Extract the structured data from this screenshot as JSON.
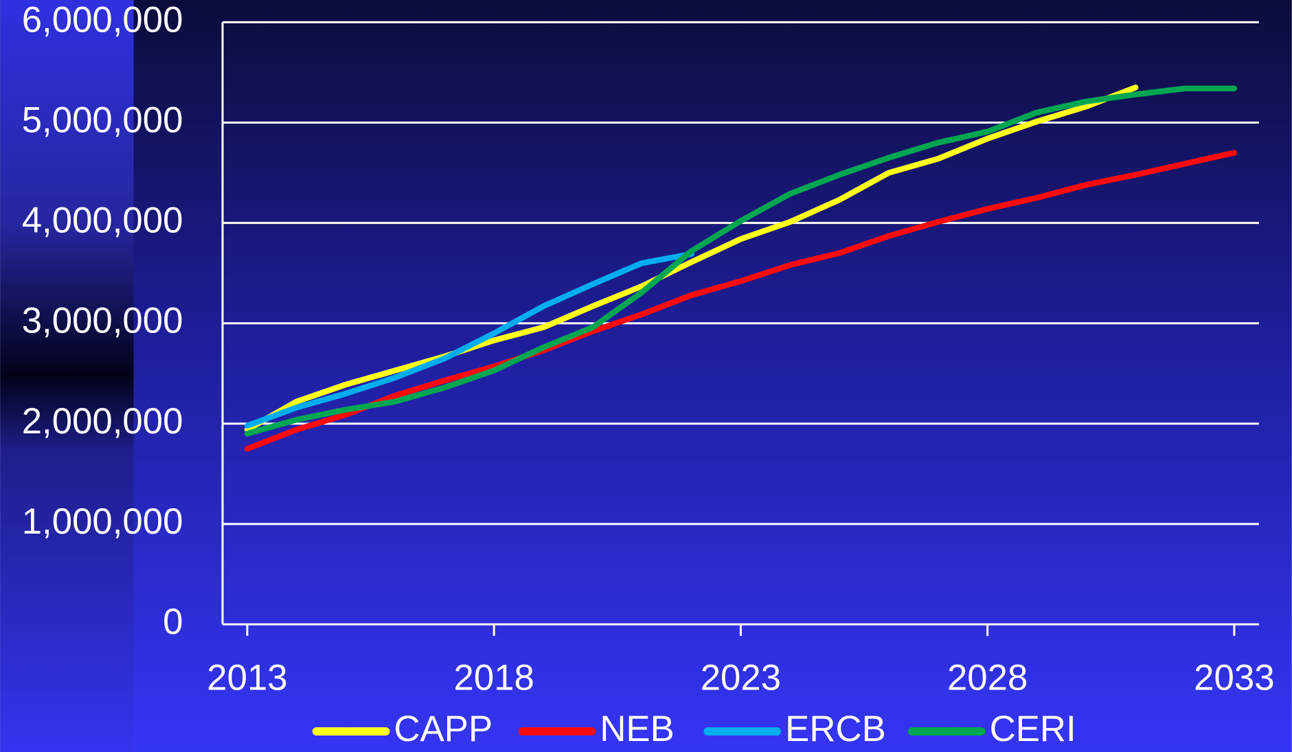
{
  "chart_data": {
    "type": "line",
    "x": [
      2013,
      2014,
      2015,
      2016,
      2017,
      2018,
      2019,
      2020,
      2021,
      2022,
      2023,
      2024,
      2025,
      2026,
      2027,
      2028,
      2029,
      2030,
      2031,
      2032,
      2033
    ],
    "series": [
      {
        "name": "CAPP",
        "color": "#ffff1a",
        "values": [
          1940000,
          2220000,
          2390000,
          2530000,
          2670000,
          2830000,
          2960000,
          3170000,
          3370000,
          3610000,
          3840000,
          4010000,
          4230000,
          4500000,
          4640000,
          4840000,
          5010000,
          5160000,
          5350000,
          null,
          null
        ]
      },
      {
        "name": "NEB",
        "color": "#ff0a0a",
        "values": [
          1750000,
          1940000,
          2090000,
          2280000,
          2430000,
          2570000,
          2730000,
          2920000,
          3090000,
          3280000,
          3420000,
          3580000,
          3700000,
          3870000,
          4010000,
          4140000,
          4250000,
          4380000,
          4480000,
          4590000,
          4700000
        ]
      },
      {
        "name": "ERCB",
        "color": "#00aeef",
        "values": [
          1980000,
          2160000,
          2300000,
          2460000,
          2650000,
          2900000,
          3170000,
          3390000,
          3600000,
          3690000,
          null,
          null,
          null,
          null,
          null,
          null,
          null,
          null,
          null,
          null,
          null
        ]
      },
      {
        "name": "CERI",
        "color": "#00a651",
        "values": [
          1900000,
          2040000,
          2140000,
          2220000,
          2360000,
          2530000,
          2760000,
          2960000,
          3310000,
          3720000,
          4020000,
          4290000,
          4480000,
          4650000,
          4800000,
          4910000,
          5100000,
          5210000,
          5280000,
          5340000,
          5340000
        ]
      }
    ],
    "xlim": [
      2012.5,
      2033.5
    ],
    "xticks": [
      2013,
      2018,
      2023,
      2028,
      2033
    ],
    "ylim": [
      0,
      6000000
    ],
    "yticks": [
      0,
      {
        "value": 1000000,
        "label": "1,000,000"
      },
      {
        "value": 2000000,
        "label": "2,000,000"
      },
      {
        "value": 3000000,
        "label": "3,000,000"
      },
      {
        "value": 4000000,
        "label": "4,000,000"
      },
      {
        "value": 5000000,
        "label": "5,000,000"
      },
      {
        "value": 6000000,
        "label": "6,000,000"
      }
    ],
    "grid": true,
    "legend": "bottom"
  }
}
